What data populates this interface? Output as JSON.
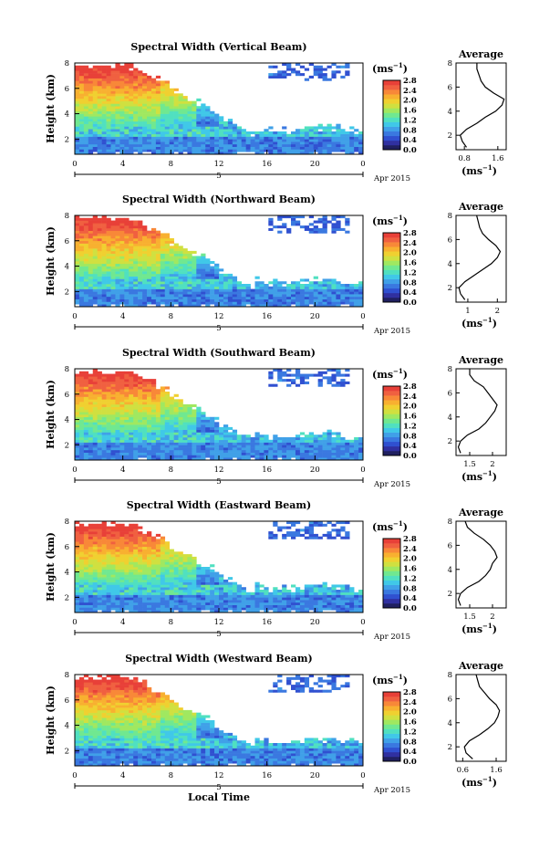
{
  "figure": {
    "xlabel": "Local Time",
    "date_label": "Apr 2015",
    "day_label": "5",
    "colorbar_unit": "(ms",
    "colorbar_unit_sup": "−1",
    "avg_title": "Average",
    "avg_unit": "(ms",
    "avg_unit_sup": "−1",
    "height_label": "Height (km)",
    "colormap": [
      "#202060",
      "#3030a0",
      "#3050d0",
      "#3a78e0",
      "#40a0e8",
      "#40c8e8",
      "#50e0c0",
      "#70e890",
      "#a0e860",
      "#d0e040",
      "#f0d030",
      "#f8b030",
      "#f88838",
      "#f06040",
      "#e84038"
    ]
  },
  "chart_data": [
    {
      "type": "heatmap",
      "title": "Spectral Width (Vertical Beam)",
      "ylabel": "Height (km)",
      "x_ticks": [
        "0",
        "4",
        "8",
        "12",
        "16",
        "20",
        "0"
      ],
      "y_ticks": [
        "2",
        "4",
        "6",
        "8"
      ],
      "xlim": [
        0,
        24
      ],
      "ylim": [
        0.8,
        8
      ],
      "colorbar_ticks": [
        "0.0",
        "0.4",
        "0.8",
        "1.2",
        "1.6",
        "2.0",
        "2.4",
        "2.8"
      ],
      "clim": [
        0.0,
        2.8
      ],
      "average": {
        "title": "Average",
        "x_ticks": [
          "0.8",
          "1.6"
        ],
        "xlim": [
          0.6,
          1.8
        ],
        "heights_km": [
          1.0,
          1.5,
          2.0,
          2.5,
          3.0,
          3.5,
          4.0,
          4.5,
          5.0,
          5.5,
          6.0,
          6.5,
          7.0,
          7.5,
          8.0
        ],
        "values": [
          0.85,
          0.75,
          0.7,
          0.85,
          1.1,
          1.3,
          1.55,
          1.7,
          1.75,
          1.5,
          1.3,
          1.2,
          1.15,
          1.1,
          1.1
        ]
      }
    },
    {
      "type": "heatmap",
      "title": "Spectral Width (Northward Beam)",
      "ylabel": "Height (km)",
      "x_ticks": [
        "0",
        "4",
        "8",
        "12",
        "16",
        "20",
        "0"
      ],
      "y_ticks": [
        "2",
        "4",
        "6",
        "8"
      ],
      "xlim": [
        0,
        24
      ],
      "ylim": [
        0.8,
        8
      ],
      "colorbar_ticks": [
        "0.0",
        "0.4",
        "0.8",
        "1.2",
        "1.6",
        "2.0",
        "2.4",
        "2.8"
      ],
      "clim": [
        0.0,
        2.8
      ],
      "average": {
        "title": "Average",
        "x_ticks": [
          "1",
          "2"
        ],
        "xlim": [
          0.6,
          2.3
        ],
        "heights_km": [
          1.0,
          1.5,
          2.0,
          2.5,
          3.0,
          3.5,
          4.0,
          4.5,
          5.0,
          5.5,
          6.0,
          6.5,
          7.0,
          7.5,
          8.0
        ],
        "values": [
          0.9,
          0.75,
          0.7,
          0.9,
          1.2,
          1.5,
          1.8,
          2.0,
          2.1,
          1.95,
          1.7,
          1.5,
          1.4,
          1.35,
          1.3
        ]
      }
    },
    {
      "type": "heatmap",
      "title": "Spectral Width (Southward Beam)",
      "ylabel": "Height (km)",
      "x_ticks": [
        "0",
        "4",
        "8",
        "12",
        "16",
        "20",
        "0"
      ],
      "y_ticks": [
        "2",
        "4",
        "6",
        "8"
      ],
      "xlim": [
        0,
        24
      ],
      "ylim": [
        0.8,
        8
      ],
      "colorbar_ticks": [
        "0.0",
        "0.4",
        "0.8",
        "1.2",
        "1.6",
        "2.0",
        "2.4",
        "2.8"
      ],
      "clim": [
        0.0,
        2.8
      ],
      "average": {
        "title": "Average",
        "x_ticks": [
          "1.5",
          "2"
        ],
        "xlim": [
          1.2,
          2.3
        ],
        "heights_km": [
          1.0,
          1.5,
          2.0,
          2.5,
          3.0,
          3.5,
          4.0,
          4.5,
          5.0,
          5.5,
          6.0,
          6.5,
          7.0,
          7.5,
          8.0
        ],
        "values": [
          1.3,
          1.25,
          1.3,
          1.45,
          1.7,
          1.85,
          1.95,
          2.05,
          2.1,
          2.0,
          1.9,
          1.8,
          1.6,
          1.5,
          1.5
        ]
      }
    },
    {
      "type": "heatmap",
      "title": "Spectral Width (Eastward Beam)",
      "ylabel": "Height (km)",
      "x_ticks": [
        "0",
        "4",
        "8",
        "12",
        "16",
        "20",
        "0"
      ],
      "y_ticks": [
        "2",
        "4",
        "6",
        "8"
      ],
      "xlim": [
        0,
        24
      ],
      "ylim": [
        0.8,
        8
      ],
      "colorbar_ticks": [
        "0.0",
        "0.4",
        "0.8",
        "1.2",
        "1.6",
        "2.0",
        "2.4",
        "2.8"
      ],
      "clim": [
        0.0,
        2.8
      ],
      "average": {
        "title": "Average",
        "x_ticks": [
          "1.5",
          "2"
        ],
        "xlim": [
          1.2,
          2.3
        ],
        "heights_km": [
          1.0,
          1.5,
          2.0,
          2.5,
          3.0,
          3.5,
          4.0,
          4.5,
          5.0,
          5.5,
          6.0,
          6.5,
          7.0,
          7.5,
          8.0
        ],
        "values": [
          1.3,
          1.25,
          1.3,
          1.45,
          1.7,
          1.85,
          1.95,
          2.0,
          2.1,
          2.05,
          1.95,
          1.8,
          1.6,
          1.45,
          1.4
        ]
      }
    },
    {
      "type": "heatmap",
      "title": "Spectral Width (Westward Beam)",
      "ylabel": "Height (km)",
      "x_ticks": [
        "0",
        "4",
        "8",
        "12",
        "16",
        "20",
        "0"
      ],
      "y_ticks": [
        "2",
        "4",
        "6",
        "8"
      ],
      "xlim": [
        0,
        24
      ],
      "ylim": [
        0.8,
        8
      ],
      "colorbar_ticks": [
        "0.0",
        "0.4",
        "0.8",
        "1.2",
        "1.6",
        "2.0",
        "2.4",
        "2.8"
      ],
      "clim": [
        0.0,
        2.8
      ],
      "average": {
        "title": "Average",
        "x_ticks": [
          "0.6",
          "1.6"
        ],
        "xlim": [
          0.4,
          1.9
        ],
        "heights_km": [
          1.0,
          1.5,
          2.0,
          2.5,
          3.0,
          3.5,
          4.0,
          4.5,
          5.0,
          5.5,
          6.0,
          6.5,
          7.0,
          7.5,
          8.0
        ],
        "values": [
          0.9,
          0.7,
          0.65,
          0.8,
          1.1,
          1.35,
          1.55,
          1.65,
          1.7,
          1.6,
          1.4,
          1.25,
          1.1,
          1.05,
          1.0
        ]
      }
    }
  ]
}
